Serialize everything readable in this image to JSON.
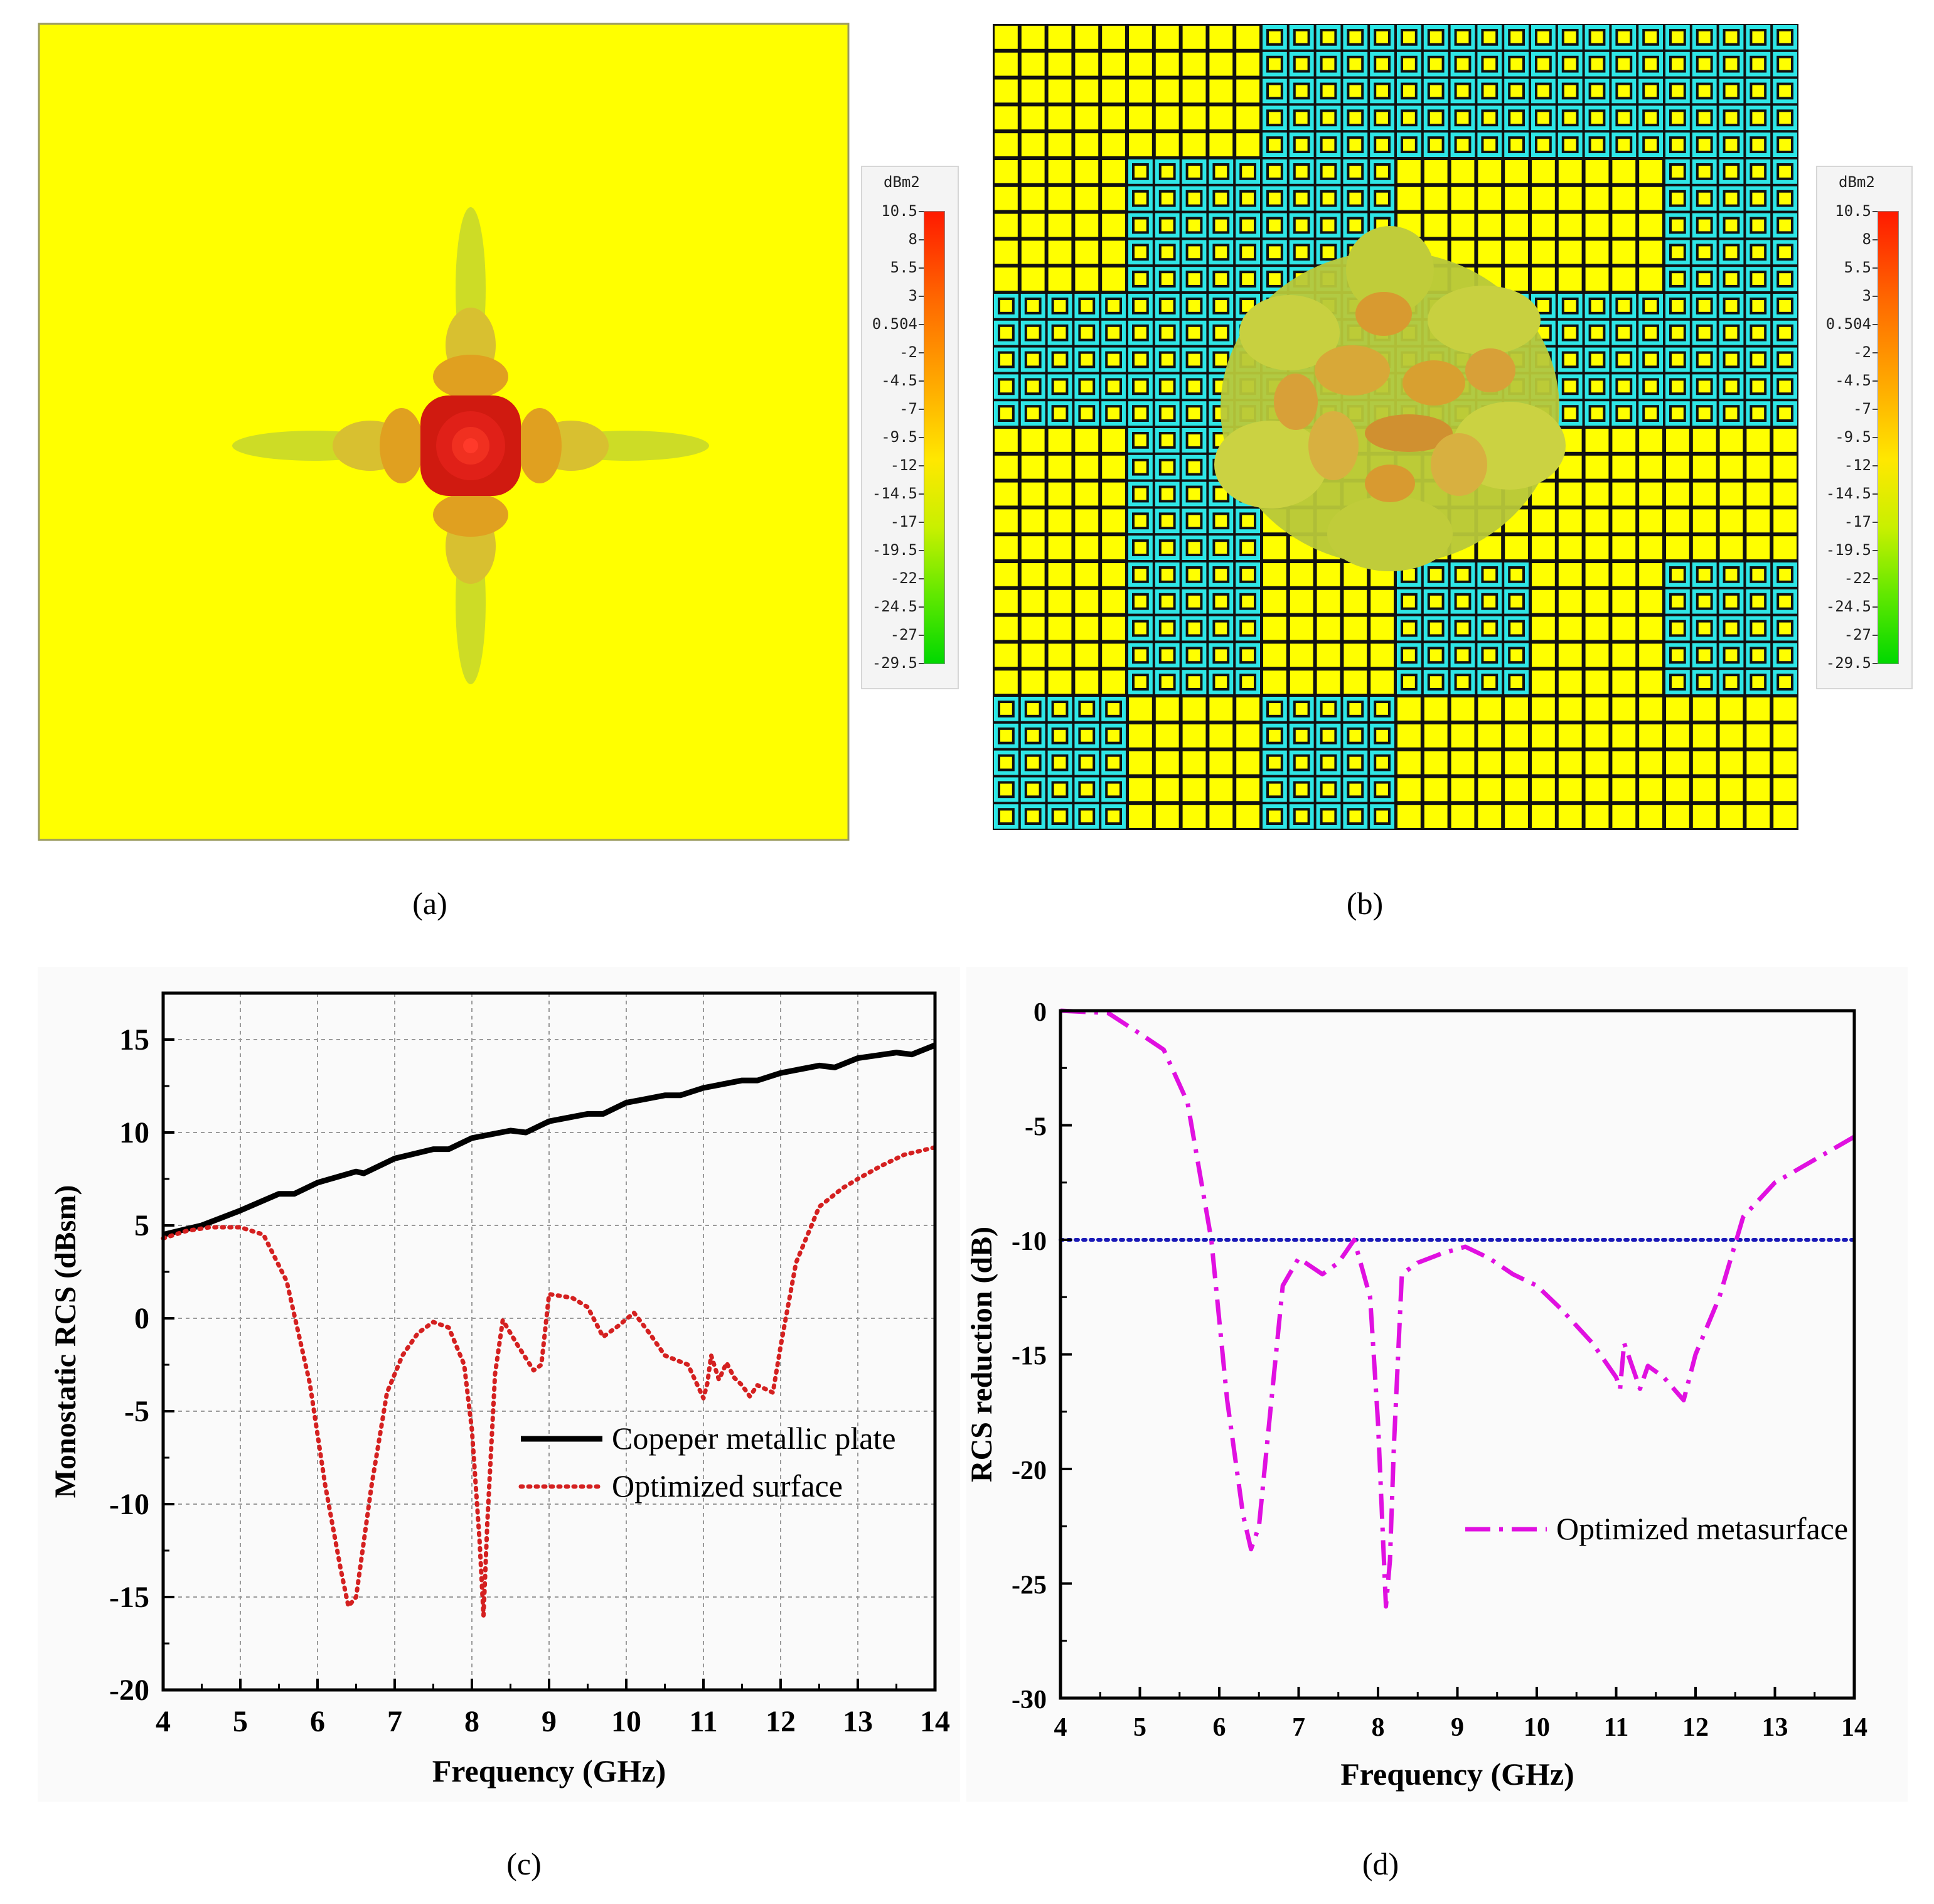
{
  "figure": {
    "captions": {
      "a": "(a)",
      "b": "(b)",
      "c": "(c)",
      "d": "(d)"
    }
  },
  "colorbar": {
    "unit": "dBm2",
    "ticks": [
      "10.5",
      "8",
      "5.5",
      "3",
      "0.504",
      "-2",
      "-4.5",
      "-7",
      "-9.5",
      "-12",
      "-14.5",
      "-17",
      "-19.5",
      "-22",
      "-24.5",
      "-27",
      "-29.5"
    ]
  },
  "panel_a": {
    "plate_color": "#ffff00",
    "hotspot_color": "#d01a10"
  },
  "panel_b": {
    "cell_A_color": "#ffff00",
    "cell_B_color": "#2ee6e6",
    "layout": [
      "AB",
      "AAB",
      "BBB",
      "AAB",
      "BBA",
      "ABA"
    ],
    "block_grid": [
      [
        "A",
        "A",
        "B",
        "B",
        "B",
        "B"
      ],
      [
        "A",
        "B",
        "B",
        "A",
        "A",
        "B"
      ],
      [
        "B",
        "B",
        "B",
        "B",
        "B",
        "B"
      ],
      [
        "A",
        "B",
        "A",
        "A",
        "A",
        "A"
      ],
      [
        "A",
        "B",
        "A",
        "B",
        "A",
        "B"
      ],
      [
        "B",
        "A",
        "B",
        "A",
        "A",
        "A"
      ]
    ]
  },
  "chart_data": [
    {
      "id": "c",
      "type": "line",
      "xlabel": "Frequency (GHz)",
      "ylabel": "Monostatic RCS (dBsm)",
      "xlim": [
        4,
        14
      ],
      "ylim": [
        -20,
        17.5
      ],
      "xticks": [
        "4",
        "5",
        "6",
        "7",
        "8",
        "9",
        "10",
        "11",
        "12",
        "13",
        "14"
      ],
      "yticks": [
        "15",
        "10",
        "5",
        "0",
        "-5",
        "-10",
        "-15",
        "-20"
      ],
      "grid": true,
      "legend_position": "middle-right",
      "series": [
        {
          "name": "Copeper metallic plate",
          "style": "solid-black",
          "x": [
            4.0,
            4.5,
            5.0,
            5.5,
            5.7,
            6.0,
            6.5,
            6.6,
            7.0,
            7.5,
            7.7,
            8.0,
            8.5,
            8.7,
            9.0,
            9.5,
            9.7,
            10.0,
            10.5,
            10.7,
            11.0,
            11.5,
            11.7,
            12.0,
            12.5,
            12.7,
            13.0,
            13.5,
            13.7,
            14.0
          ],
          "y": [
            4.5,
            5.0,
            5.8,
            6.7,
            6.7,
            7.3,
            7.9,
            7.8,
            8.6,
            9.1,
            9.1,
            9.7,
            10.1,
            10.0,
            10.6,
            11.0,
            11.0,
            11.6,
            12.0,
            12.0,
            12.4,
            12.8,
            12.8,
            13.2,
            13.6,
            13.5,
            14.0,
            14.3,
            14.2,
            14.7
          ]
        },
        {
          "name": "Optimized surface",
          "style": "dotted-red",
          "x": [
            4.0,
            4.3,
            4.6,
            5.0,
            5.3,
            5.6,
            5.9,
            6.1,
            6.3,
            6.4,
            6.5,
            6.7,
            6.9,
            7.1,
            7.3,
            7.5,
            7.7,
            7.9,
            8.0,
            8.1,
            8.15,
            8.2,
            8.3,
            8.4,
            8.6,
            8.8,
            8.9,
            9.0,
            9.3,
            9.5,
            9.7,
            9.9,
            10.1,
            10.3,
            10.5,
            10.8,
            11.0,
            11.05,
            11.1,
            11.2,
            11.3,
            11.4,
            11.5,
            11.6,
            11.7,
            11.9,
            12.0,
            12.2,
            12.5,
            12.8,
            13.0,
            13.3,
            13.6,
            14.0
          ],
          "y": [
            4.3,
            4.7,
            4.9,
            4.9,
            4.5,
            2.0,
            -3.5,
            -9.0,
            -13.5,
            -15.5,
            -15.0,
            -9.0,
            -4.0,
            -2.0,
            -0.8,
            -0.2,
            -0.5,
            -2.5,
            -6.0,
            -12.0,
            -16.0,
            -11.0,
            -3.0,
            -0.1,
            -1.5,
            -2.8,
            -2.5,
            1.3,
            1.1,
            0.6,
            -1.0,
            -0.4,
            0.3,
            -0.8,
            -2.0,
            -2.5,
            -4.3,
            -3.5,
            -2.0,
            -3.3,
            -2.4,
            -3.2,
            -3.6,
            -4.2,
            -3.6,
            -4.0,
            -1.5,
            3.0,
            6.0,
            7.0,
            7.5,
            8.2,
            8.8,
            9.2
          ]
        }
      ]
    },
    {
      "id": "d",
      "type": "line",
      "xlabel": "Frequency (GHz)",
      "ylabel": "RCS reduction (dB)",
      "xlim": [
        4,
        14
      ],
      "ylim": [
        -30,
        0
      ],
      "xticks": [
        "4",
        "5",
        "6",
        "7",
        "8",
        "9",
        "10",
        "11",
        "12",
        "13",
        "14"
      ],
      "yticks": [
        "0",
        "-5",
        "-10",
        "-15",
        "-20",
        "-25",
        "-30"
      ],
      "grid": false,
      "legend_position": "lower-right",
      "reference_line": {
        "y": -10,
        "style": "dotted-blue"
      },
      "series": [
        {
          "name": "Optimized metasurface",
          "style": "dashdot-magenta",
          "x": [
            4.0,
            4.6,
            5.0,
            5.3,
            5.6,
            5.9,
            6.1,
            6.3,
            6.4,
            6.5,
            6.6,
            6.8,
            7.0,
            7.3,
            7.5,
            7.7,
            7.9,
            8.0,
            8.1,
            8.15,
            8.2,
            8.3,
            8.5,
            8.8,
            9.1,
            9.4,
            9.7,
            10.0,
            10.3,
            10.7,
            11.0,
            11.05,
            11.1,
            11.2,
            11.3,
            11.4,
            11.6,
            11.85,
            12.0,
            12.3,
            12.6,
            13.0,
            13.5,
            14.0
          ],
          "y": [
            0.0,
            -0.1,
            -1.0,
            -1.7,
            -4.0,
            -10.0,
            -17.0,
            -22.0,
            -23.5,
            -22.5,
            -19.0,
            -12.0,
            -10.8,
            -11.5,
            -11.0,
            -10.0,
            -12.5,
            -18.0,
            -26.0,
            -24.0,
            -19.0,
            -11.5,
            -11.0,
            -10.6,
            -10.3,
            -10.8,
            -11.5,
            -12.0,
            -13.0,
            -14.5,
            -16.0,
            -16.5,
            -14.5,
            -15.5,
            -16.5,
            -15.5,
            -16.0,
            -17.0,
            -15.0,
            -12.5,
            -9.0,
            -7.5,
            -6.5,
            -5.5
          ]
        }
      ]
    }
  ]
}
